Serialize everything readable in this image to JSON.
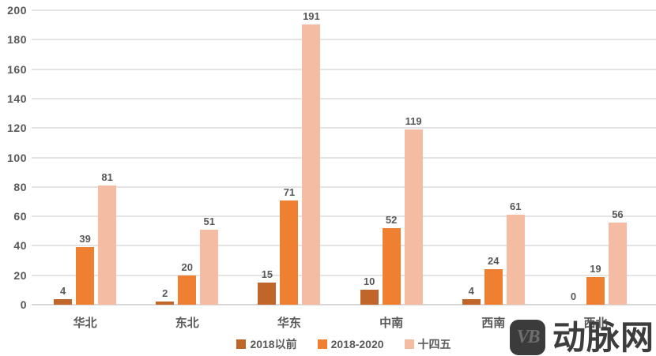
{
  "chart_data": {
    "type": "bar",
    "categories": [
      "华北",
      "东北",
      "华东",
      "中南",
      "西南",
      "西北"
    ],
    "series": [
      {
        "name": "2018以前",
        "color": "#c1662a",
        "values": [
          4,
          2,
          15,
          10,
          4,
          0
        ]
      },
      {
        "name": "2018-2020",
        "color": "#ef8032",
        "values": [
          39,
          20,
          71,
          52,
          24,
          19
        ]
      },
      {
        "name": "十四五",
        "color": "#f4bda3",
        "values": [
          81,
          51,
          191,
          119,
          61,
          56
        ]
      }
    ],
    "title": "",
    "xlabel": "",
    "ylabel": "",
    "ylim": [
      0,
      200
    ],
    "ytick_step": 20,
    "grid": "horizontal",
    "legend_position": "bottom",
    "bar_value_labels": true
  },
  "colors": {
    "axis_text": "#595959",
    "gridline": "#e4e4e4",
    "zero_line": "#d8d8d8",
    "background": "#ffffff",
    "watermark": "#3d3d3d"
  },
  "watermark": {
    "logo_text": "VB",
    "site_name": "动脉网"
  }
}
